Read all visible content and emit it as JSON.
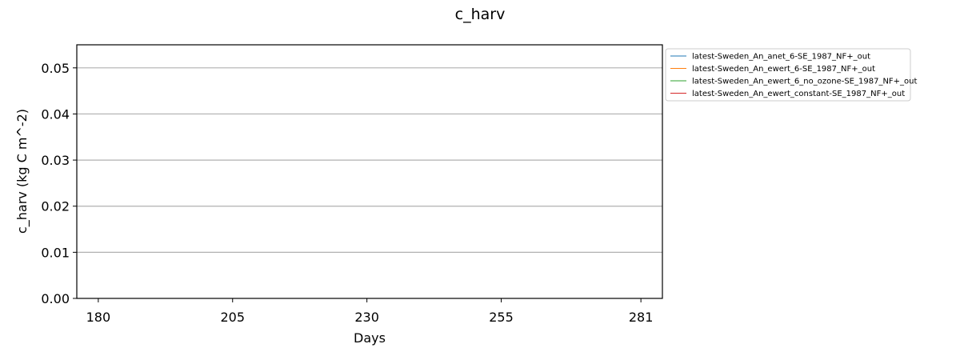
{
  "chart_data": {
    "type": "line",
    "title": "c_harv",
    "xlabel": "Days",
    "ylabel": "c_harv (kg C m^-2)",
    "xlim": [
      176,
      285
    ],
    "ylim": [
      0,
      0.055
    ],
    "xticks": [
      180,
      205,
      230,
      255,
      281
    ],
    "xtick_labels": [
      "180",
      "205",
      "230",
      "255",
      "281"
    ],
    "yticks": [
      0.0,
      0.01,
      0.02,
      0.03,
      0.04,
      0.05
    ],
    "ytick_labels": [
      "0.00",
      "0.01",
      "0.02",
      "0.03",
      "0.04",
      "0.05"
    ],
    "grid": "horizontal",
    "legend_position": "outside-top-right",
    "series": [
      {
        "name": "latest-Sweden_An_anet_6-SE_1987_NF+_out",
        "color": "#1f77b4",
        "x": [],
        "values": []
      },
      {
        "name": "latest-Sweden_An_ewert_6-SE_1987_NF+_out",
        "color": "#ff7f0e",
        "x": [],
        "values": []
      },
      {
        "name": "latest-Sweden_An_ewert_6_no_ozone-SE_1987_NF+_out",
        "color": "#2ca02c",
        "x": [],
        "values": []
      },
      {
        "name": "latest-Sweden_An_ewert_constant-SE_1987_NF+_out",
        "color": "#d62728",
        "x": [],
        "values": []
      }
    ]
  }
}
